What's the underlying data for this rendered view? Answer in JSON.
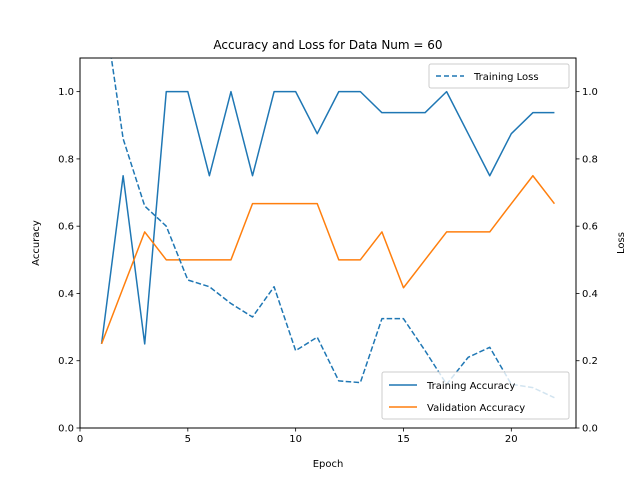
{
  "chart_data": {
    "type": "line",
    "title": "Accuracy and Loss for Data Num = 60",
    "xlabel": "Epoch",
    "ylabel_left": "Accuracy",
    "ylabel_right": "Loss",
    "xlim": [
      0,
      23
    ],
    "ylim_left": [
      0,
      1.1
    ],
    "ylim_right": [
      0,
      1.1
    ],
    "x_ticks": [
      0,
      5,
      10,
      15,
      20
    ],
    "y_ticks": [
      0.0,
      0.2,
      0.4,
      0.6,
      0.8,
      1.0
    ],
    "y_tick_labels": [
      "0.0",
      "0.2",
      "0.4",
      "0.6",
      "0.8",
      "1.0"
    ],
    "grid": false,
    "colors": {
      "training": "#1f77b4",
      "validation": "#ff7f0e"
    },
    "x": [
      1,
      2,
      3,
      4,
      5,
      6,
      7,
      8,
      9,
      10,
      11,
      12,
      13,
      14,
      15,
      16,
      17,
      18,
      19,
      20,
      21,
      22
    ],
    "series": [
      {
        "name": "Training Accuracy",
        "axis": "left",
        "style": "solid",
        "color_key": "training",
        "values": [
          0.25,
          0.75,
          0.25,
          1.0,
          1.0,
          0.75,
          1.0,
          0.75,
          1.0,
          1.0,
          0.875,
          1.0,
          1.0,
          0.9375,
          0.9375,
          0.9375,
          1.0,
          0.875,
          0.75,
          0.875,
          0.9375,
          0.9375
        ]
      },
      {
        "name": "Validation Accuracy",
        "axis": "left",
        "style": "solid",
        "color_key": "validation",
        "values": [
          0.25,
          0.417,
          0.583,
          0.5,
          0.5,
          0.5,
          0.5,
          0.667,
          0.667,
          0.667,
          0.667,
          0.5,
          0.5,
          0.583,
          0.417,
          0.5,
          0.583,
          0.583,
          0.583,
          0.667,
          0.75,
          0.667
        ]
      },
      {
        "name": "Training Loss",
        "axis": "right",
        "style": "dashed",
        "color_key": "training",
        "values": [
          1.3,
          0.86,
          0.66,
          0.6,
          0.44,
          0.42,
          0.37,
          0.33,
          0.42,
          0.23,
          0.27,
          0.14,
          0.135,
          0.325,
          0.325,
          0.23,
          0.13,
          0.21,
          0.24,
          0.13,
          0.12,
          0.09
        ]
      }
    ],
    "legends": [
      {
        "placement": "upper right",
        "entries": [
          "Training Loss"
        ]
      },
      {
        "placement": "lower right",
        "entries": [
          "Training Accuracy",
          "Validation Accuracy"
        ]
      }
    ]
  }
}
